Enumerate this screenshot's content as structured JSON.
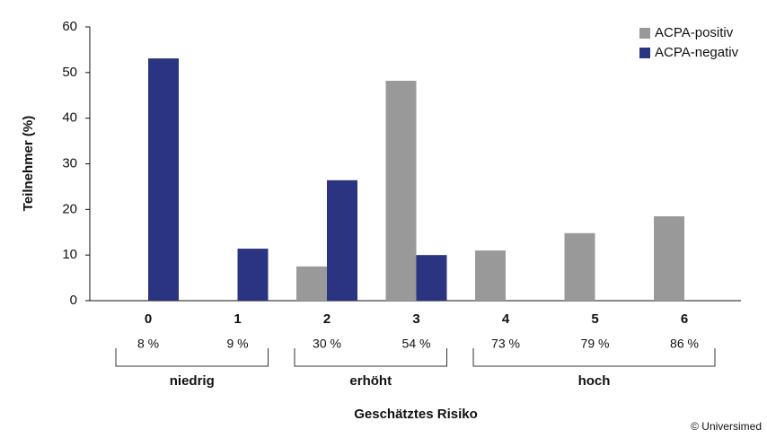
{
  "chart_data": {
    "type": "bar",
    "y_label": "Teilnehmer (%)",
    "x_label": "Geschätztes Risiko",
    "categories": [
      "0",
      "1",
      "2",
      "3",
      "4",
      "5",
      "6"
    ],
    "risk_labels": [
      "8 %",
      "9 %",
      "30 %",
      "54 %",
      "73 %",
      "79 %",
      "86 %"
    ],
    "groups": [
      "niedrig",
      "erhöht",
      "hoch"
    ],
    "series": [
      {
        "name": "ACPA-positiv",
        "color": "#999999",
        "values": [
          0,
          0,
          7.5,
          48.2,
          11,
          14.8,
          18.5
        ]
      },
      {
        "name": "ACPA-negativ",
        "color": "#2b3480",
        "values": [
          53.1,
          11.4,
          26.4,
          10,
          0,
          0,
          0
        ]
      }
    ],
    "ylim": [
      0,
      60
    ],
    "yticks": [
      0,
      10,
      20,
      30,
      40,
      50,
      60
    ],
    "legend": "top-right",
    "copyright": "© Universimed"
  }
}
